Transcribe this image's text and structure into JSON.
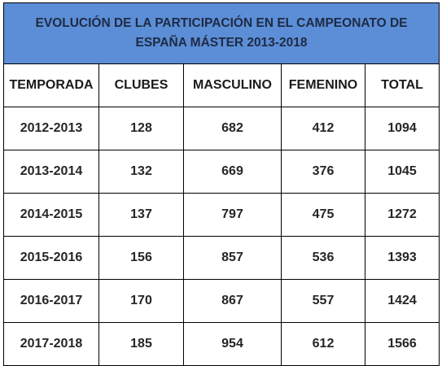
{
  "table": {
    "title_line1": "EVOLUCIÓN DE LA PARTICIPACIÓN EN EL CAMPEONATO DE",
    "title_line2": "ESPAÑA MÁSTER 2013-2018",
    "title_bg": "#5b8ed6",
    "headers": [
      "TEMPORADA",
      "CLUBES",
      "MASCULINO",
      "FEMENINO",
      "TOTAL"
    ],
    "rows": [
      [
        "2012-2013",
        "128",
        "682",
        "412",
        "1094"
      ],
      [
        "2013-2014",
        "132",
        "669",
        "376",
        "1045"
      ],
      [
        "2014-2015",
        "137",
        "797",
        "475",
        "1272"
      ],
      [
        "2015-2016",
        "156",
        "857",
        "536",
        "1393"
      ],
      [
        "2016-2017",
        "170",
        "867",
        "557",
        "1424"
      ],
      [
        "2017-2018",
        "185",
        "954",
        "612",
        "1566"
      ]
    ]
  }
}
